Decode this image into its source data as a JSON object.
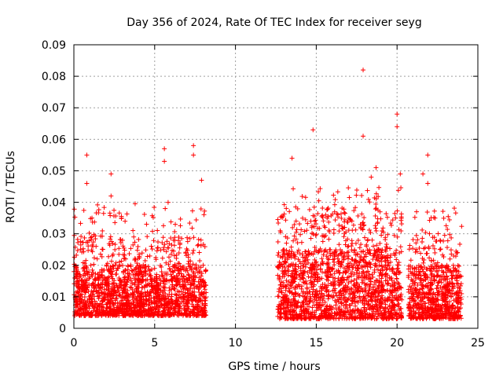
{
  "chart_data": {
    "type": "scatter",
    "title": "Day 356 of 2024, Rate Of TEC Index for receiver seyg",
    "xlabel": "GPS time / hours",
    "ylabel": "ROTI / TECUs",
    "xlim": [
      0,
      25
    ],
    "ylim": [
      0,
      0.09
    ],
    "xticks": [
      0,
      5,
      10,
      15,
      20,
      25
    ],
    "yticks": [
      0,
      0.01,
      0.02,
      0.03,
      0.04,
      0.05,
      0.06,
      0.07,
      0.08,
      0.09
    ],
    "xtick_labels": [
      "0",
      "5",
      "10",
      "15",
      "20",
      "25"
    ],
    "ytick_labels": [
      "0",
      "0.01",
      "0.02",
      "0.03",
      "0.04",
      "0.05",
      "0.06",
      "0.07",
      "0.08",
      "0.09"
    ],
    "grid": true,
    "marker": "+",
    "color": "#ff0000",
    "series": [
      {
        "name": "ROTI",
        "segments": [
          {
            "x_start": 0.0,
            "x_end": 8.2,
            "typical_y": [
              0.004,
              0.02
            ]
          },
          {
            "x_start": 12.6,
            "x_end": 20.3,
            "typical_y": [
              0.003,
              0.025
            ]
          },
          {
            "x_start": 20.7,
            "x_end": 24.0,
            "typical_y": [
              0.003,
              0.02
            ]
          }
        ],
        "notable_points": [
          {
            "x": 0.8,
            "y": 0.055
          },
          {
            "x": 0.8,
            "y": 0.046
          },
          {
            "x": 2.3,
            "y": 0.049
          },
          {
            "x": 2.3,
            "y": 0.042
          },
          {
            "x": 5.6,
            "y": 0.057
          },
          {
            "x": 5.6,
            "y": 0.053
          },
          {
            "x": 7.4,
            "y": 0.058
          },
          {
            "x": 7.4,
            "y": 0.055
          },
          {
            "x": 7.9,
            "y": 0.047
          },
          {
            "x": 13.5,
            "y": 0.054
          },
          {
            "x": 14.8,
            "y": 0.063
          },
          {
            "x": 17.9,
            "y": 0.082
          },
          {
            "x": 17.9,
            "y": 0.061
          },
          {
            "x": 20.0,
            "y": 0.068
          },
          {
            "x": 20.0,
            "y": 0.064
          },
          {
            "x": 20.2,
            "y": 0.049
          },
          {
            "x": 21.9,
            "y": 0.055
          },
          {
            "x": 21.9,
            "y": 0.046
          },
          {
            "x": 21.6,
            "y": 0.049
          },
          {
            "x": 18.7,
            "y": 0.051
          },
          {
            "x": 18.4,
            "y": 0.048
          }
        ]
      }
    ]
  }
}
